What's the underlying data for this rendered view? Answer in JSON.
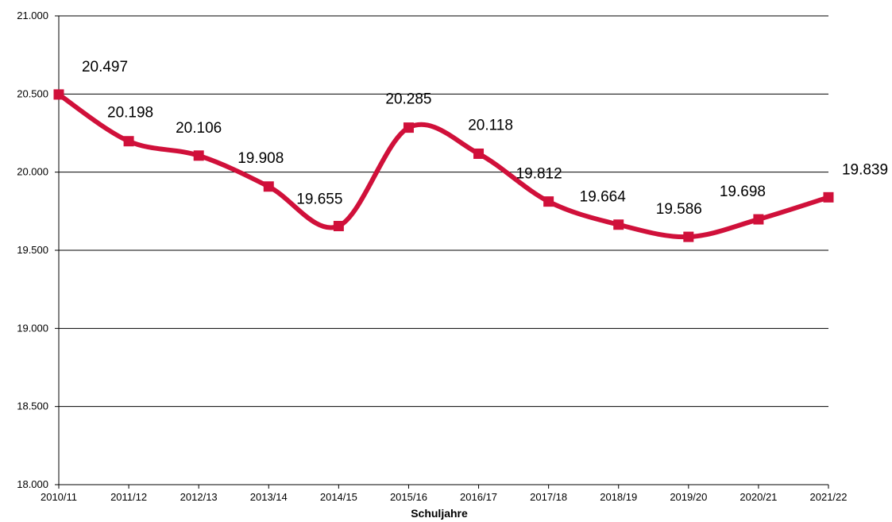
{
  "chart_data": {
    "type": "line",
    "title": "",
    "xlabel": "Schuljahre",
    "ylabel": "",
    "categories": [
      "2010/11",
      "2011/12",
      "2012/13",
      "2013/14",
      "2014/15",
      "2015/16",
      "2016/17",
      "2017/18",
      "2018/19",
      "2019/20",
      "2020/21",
      "2021/22"
    ],
    "series": [
      {
        "values": [
          20497,
          20198,
          20106,
          19908,
          19655,
          20285,
          20118,
          19812,
          19664,
          19586,
          19698,
          19839
        ],
        "labels": [
          "20.497",
          "20.198",
          "20.106",
          "19.908",
          "19.655",
          "20.285",
          "20.118",
          "19.812",
          "19.664",
          "19.586",
          "19.698",
          "19.839"
        ],
        "color": "#d0103a",
        "marker": "square",
        "smooth": true
      }
    ],
    "ylim": [
      18000,
      21000
    ],
    "yticks": [
      18000,
      18500,
      19000,
      19500,
      20000,
      20500,
      21000
    ],
    "ytick_labels": [
      "18.000",
      "18.500",
      "19.000",
      "19.500",
      "20.000",
      "20.500",
      "21.000"
    ],
    "grid": true,
    "legend": "none"
  }
}
